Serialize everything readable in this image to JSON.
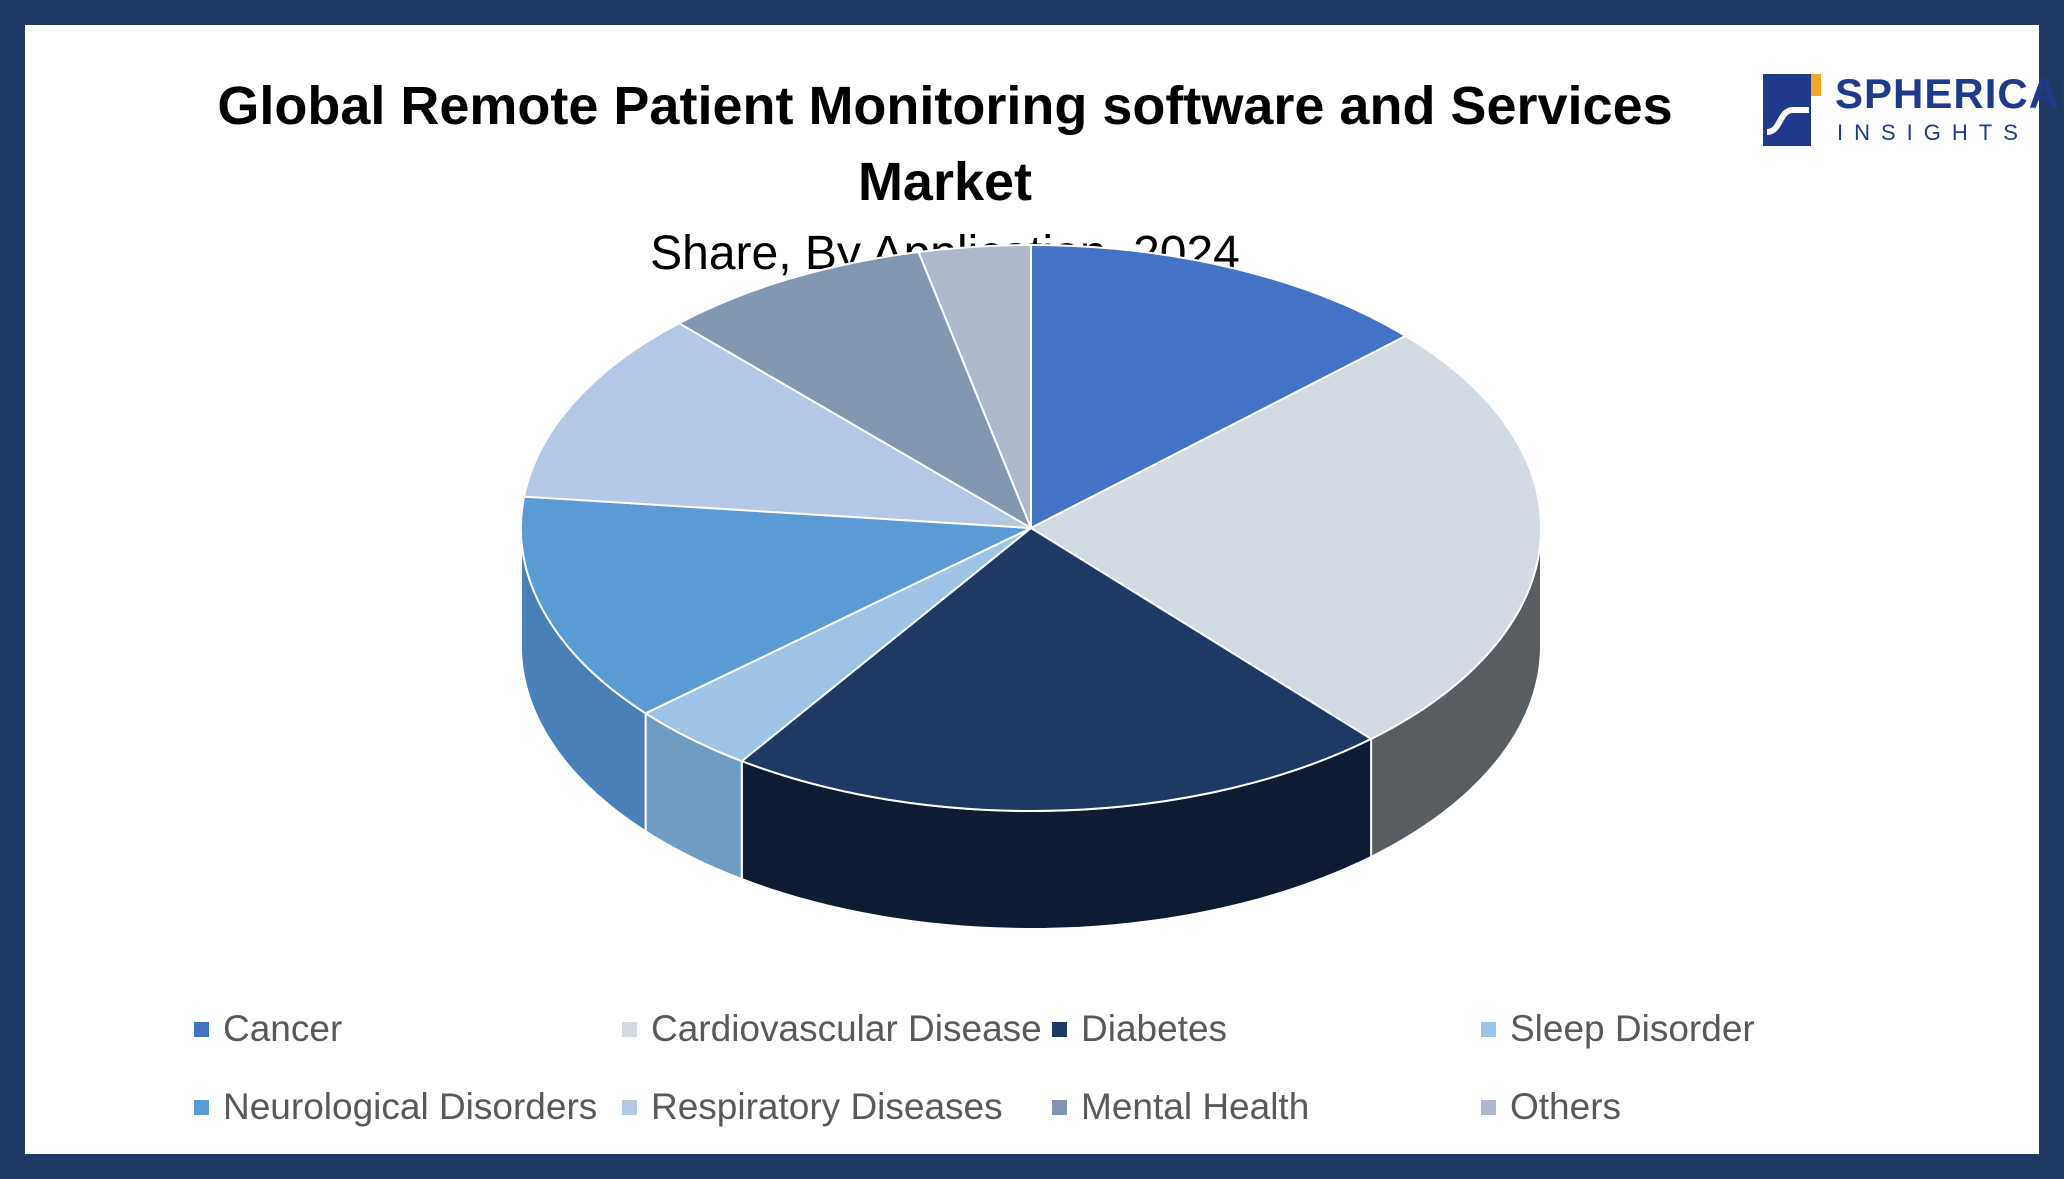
{
  "header": {
    "title": "Global Remote Patient Monitoring software and Services Market",
    "subtitle": "Share, By Application, 2024"
  },
  "logo": {
    "word": "SPHERICAL",
    "sub": "INSIGHTS",
    "colors": {
      "navy": "#1f3a8a",
      "accent": "#f5a623"
    }
  },
  "chart_data": {
    "type": "pie",
    "title": "Global Remote Patient Monitoring software and Services Market",
    "subtitle": "Share, By Application, 2024",
    "three_d": true,
    "legend_position": "bottom",
    "categories": [
      "Cancer",
      "Cardiovascular Disease",
      "Diabetes",
      "Sleep Disorder",
      "Neurological Disorders",
      "Respiratory Diseases",
      "Mental Health",
      "Others"
    ],
    "values": [
      13,
      25,
      21,
      4,
      13,
      11,
      8.5,
      3.5
    ],
    "unit": "%",
    "colors": [
      "#4472c4",
      "#d2dae4",
      "#1f3864",
      "#9dc3e6",
      "#5b9bd5",
      "#b4c7e7",
      "#8497b0",
      "#adb9ca"
    ],
    "side_colors": [
      "#2f5597",
      "#585d62",
      "#0f1a33",
      "#6f9cc2",
      "#4a80b8",
      "#8798b8",
      "#7a96b3",
      "#8795a6"
    ]
  }
}
